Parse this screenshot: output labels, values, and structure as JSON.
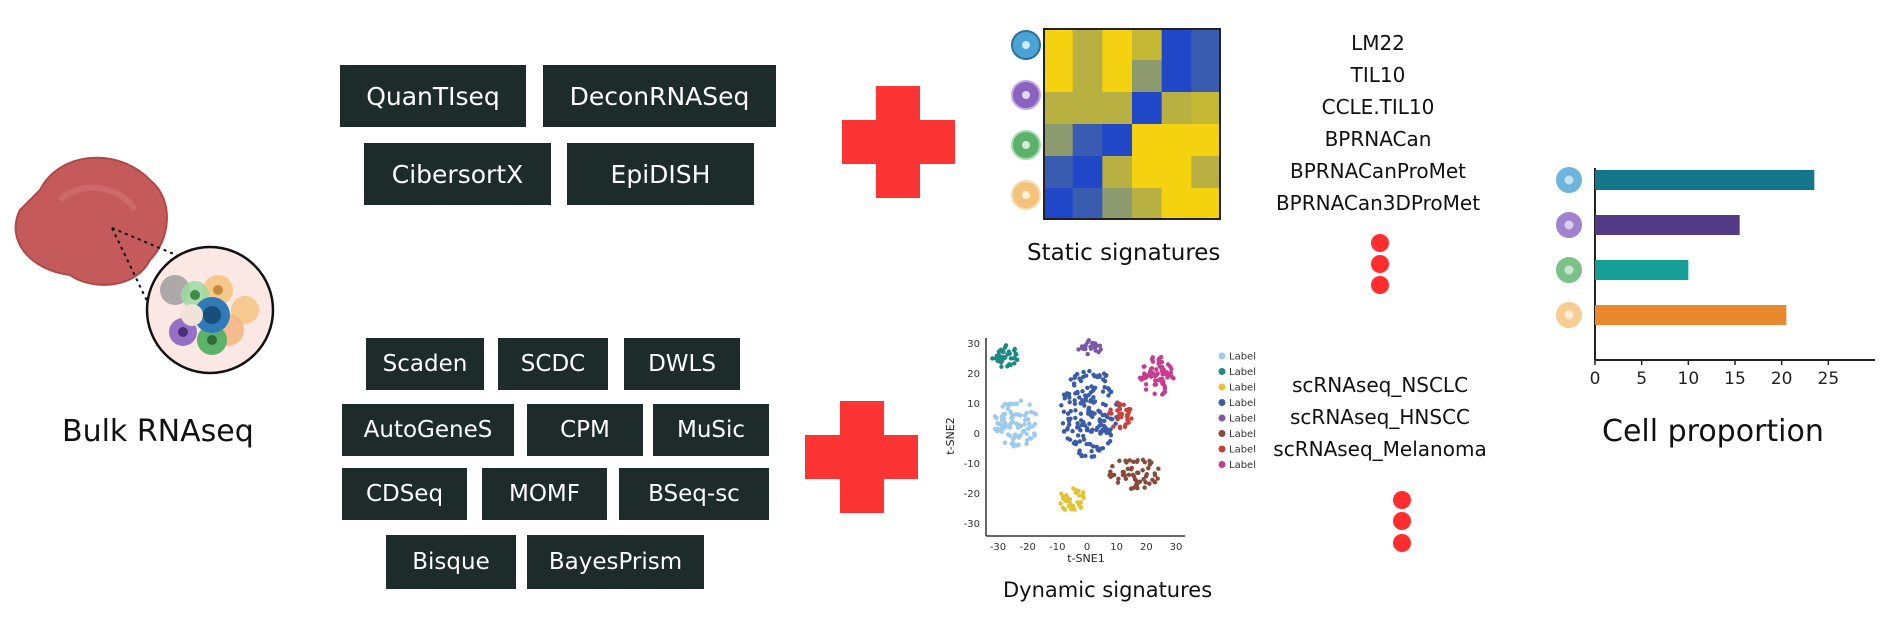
{
  "bulk": {
    "label": "Bulk RNAseq"
  },
  "tools_top": [
    "QuanTIseq",
    "DeconRNASeq",
    "CibersortX",
    "EpiDISH"
  ],
  "tools_bottom": [
    "Scaden",
    "SCDC",
    "DWLS",
    "AutoGeneS",
    "CPM",
    "MuSic",
    "CDSeq",
    "MOMF",
    "BSeq-sc",
    "Bisque",
    "BayesPrism"
  ],
  "static": {
    "caption": "Static signatures",
    "items": [
      "LM22",
      "TIL10",
      "CCLE.TIL10",
      "BPRNACan",
      "BPRNACanProMet",
      "BPRNACan3DProMet"
    ]
  },
  "dynamic": {
    "caption": "Dynamic signatures",
    "items": [
      "scRNAseq_NSCLC",
      "scRNAseq_HNSCC",
      "scRNAseq_Melanoma"
    ],
    "tsne": {
      "xlabel": "t-SNE1",
      "ylabel": "t-SNE2",
      "xticks": [
        "-30",
        "-20",
        "-10",
        "0",
        "10",
        "20",
        "30"
      ],
      "yticks": [
        "30",
        "20",
        "10",
        "0",
        "-10",
        "-20",
        "-30"
      ],
      "legend": [
        "Label",
        "Label",
        "Label",
        "Label",
        "Label",
        "Label",
        "Label",
        "Label"
      ],
      "legend_colors": [
        "#9ccbee",
        "#1a8a83",
        "#e3c234",
        "#3b5ca8",
        "#7a58a8",
        "#8a4a3a",
        "#c8403a",
        "#c83c8f"
      ]
    }
  },
  "cell_colors": [
    "#4aa3d6",
    "#8a63c2",
    "#5cb26a",
    "#f4c27a"
  ],
  "chart_data": {
    "type": "bar",
    "orientation": "horizontal",
    "title": "Cell proportion",
    "categories": [
      "",
      "",
      "",
      ""
    ],
    "values": [
      23.5,
      15.5,
      10,
      20.5
    ],
    "bar_colors": [
      "#13768b",
      "#523a86",
      "#159e96",
      "#e8892e"
    ],
    "xticks": [
      0,
      5,
      10,
      15,
      20,
      25
    ],
    "xlim": [
      0,
      30
    ]
  }
}
